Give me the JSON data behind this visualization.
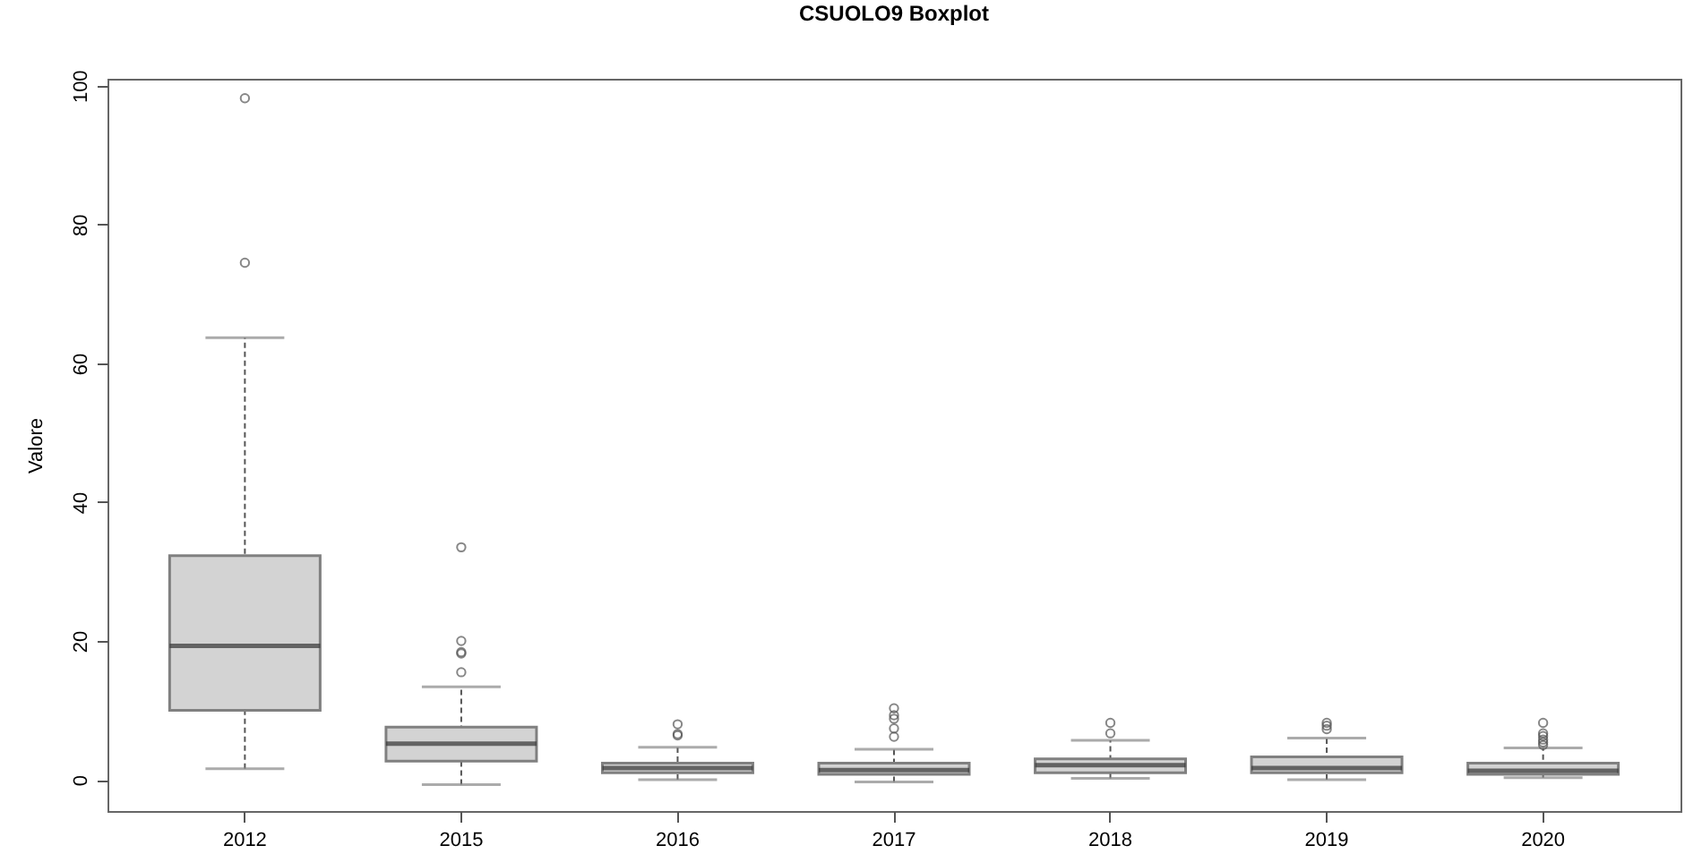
{
  "chart_data": {
    "type": "box",
    "title": "CSUOLO9 Boxplot",
    "ylabel": "Valore",
    "categories": [
      "2012",
      "2015",
      "2016",
      "2017",
      "2018",
      "2019",
      "2020"
    ],
    "boxes": [
      {
        "low": 1.6,
        "q1": 10,
        "median": 19.3,
        "q3": 32.3,
        "high": 63.7,
        "outliers": [
          74.5,
          98.2
        ]
      },
      {
        "low": -0.7,
        "q1": 2.7,
        "median": 5.2,
        "q3": 7.6,
        "high": 13.4,
        "outliers": [
          15.5,
          18.2,
          18.4,
          20,
          33.5
        ]
      },
      {
        "low": 0,
        "q1": 1,
        "median": 1.7,
        "q3": 2.4,
        "high": 4.7,
        "outliers": [
          6.4,
          6.6,
          8
        ]
      },
      {
        "low": -0.3,
        "q1": 0.8,
        "median": 1.4,
        "q3": 2.4,
        "high": 4.4,
        "outliers": [
          6.2,
          7.4,
          8.8,
          9.3,
          10.3
        ]
      },
      {
        "low": 0.2,
        "q1": 1,
        "median": 2.1,
        "q3": 3,
        "high": 5.7,
        "outliers": [
          6.7,
          8.2
        ]
      },
      {
        "low": 0,
        "q1": 1,
        "median": 1.7,
        "q3": 3.3,
        "high": 6,
        "outliers": [
          7.3,
          7.8,
          8.2
        ]
      },
      {
        "low": 0.3,
        "q1": 0.8,
        "median": 1.3,
        "q3": 2.4,
        "high": 4.6,
        "outliers": [
          5,
          5.4,
          5.8,
          6.3,
          6.7,
          8.2
        ]
      }
    ],
    "ylim": [
      -4.5,
      101
    ],
    "yticks": [
      0,
      20,
      40,
      60,
      80,
      100
    ],
    "grid": false
  }
}
